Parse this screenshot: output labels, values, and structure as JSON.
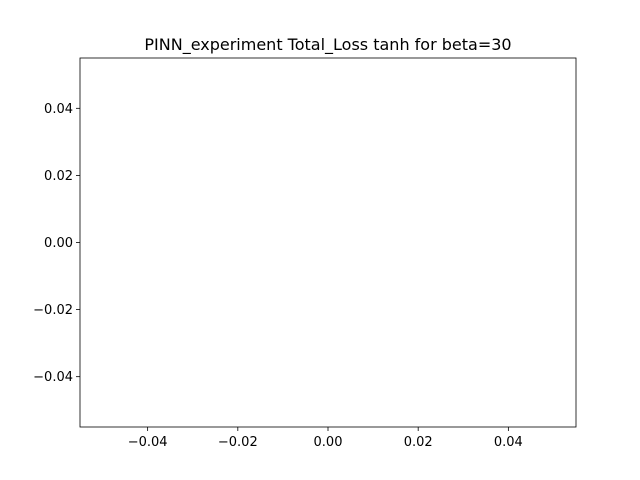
{
  "chart_data": {
    "type": "line",
    "title": "PINN_experiment Total_Loss tanh for beta=30",
    "xlabel": "",
    "ylabel": "",
    "series": [],
    "xlim": [
      -0.055,
      0.055
    ],
    "ylim": [
      -0.055,
      0.055
    ],
    "x_ticks": [
      -0.04,
      -0.02,
      0.0,
      0.02,
      0.04
    ],
    "x_tick_labels": [
      "−0.04",
      "−0.02",
      "0.00",
      "0.02",
      "0.04"
    ],
    "y_ticks": [
      -0.04,
      -0.02,
      0.0,
      0.02,
      0.04
    ],
    "y_tick_labels": [
      "−0.04",
      "−0.02",
      "0.00",
      "0.02",
      "0.04"
    ],
    "grid": false,
    "colors": {
      "axes": "#000000",
      "background": "#ffffff"
    }
  }
}
